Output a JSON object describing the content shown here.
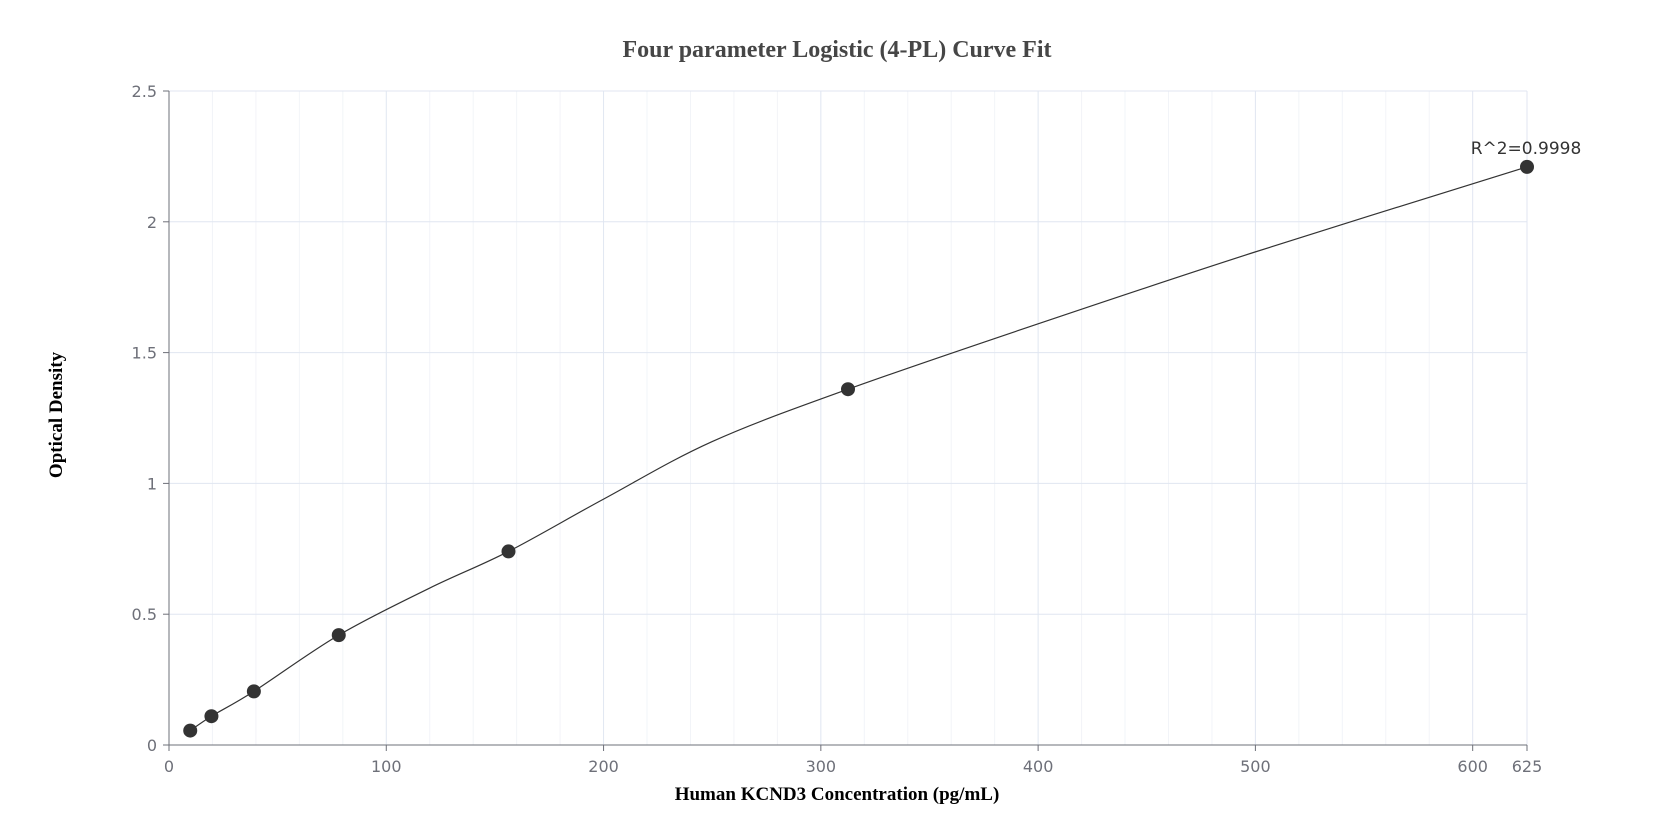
{
  "chart_data": {
    "type": "scatter",
    "title": "Four parameter Logistic (4-PL) Curve Fit",
    "xlabel": "Human KCND3 Concentration (pg/mL)",
    "ylabel": "Optical Density",
    "xlim": [
      0,
      625
    ],
    "ylim": [
      0,
      2.5
    ],
    "x_ticks": [
      0,
      100,
      200,
      300,
      400,
      500,
      600,
      625
    ],
    "y_ticks": [
      0,
      0.5,
      1,
      1.5,
      2,
      2.5
    ],
    "x_ticks_minor": [
      20,
      40,
      60,
      80,
      120,
      140,
      160,
      180,
      220,
      240,
      260,
      280,
      320,
      340,
      360,
      380,
      420,
      440,
      460,
      480,
      520,
      540,
      560,
      580
    ],
    "grid": true,
    "series": [
      {
        "x": [
          9.77,
          19.53,
          39.06,
          78.13,
          156.25,
          312.5,
          625
        ],
        "y": [
          0.055,
          0.11,
          0.205,
          0.42,
          0.74,
          1.36,
          2.21
        ]
      }
    ],
    "fit_curve": {
      "x": [
        9.77,
        19.53,
        39.06,
        78.13,
        120,
        156.25,
        200,
        250,
        312.5,
        400,
        500,
        625
      ],
      "y": [
        0.055,
        0.11,
        0.205,
        0.42,
        0.6,
        0.74,
        0.94,
        1.16,
        1.36,
        1.61,
        1.885,
        2.21
      ]
    },
    "annotation": "R^2=0.9998"
  }
}
